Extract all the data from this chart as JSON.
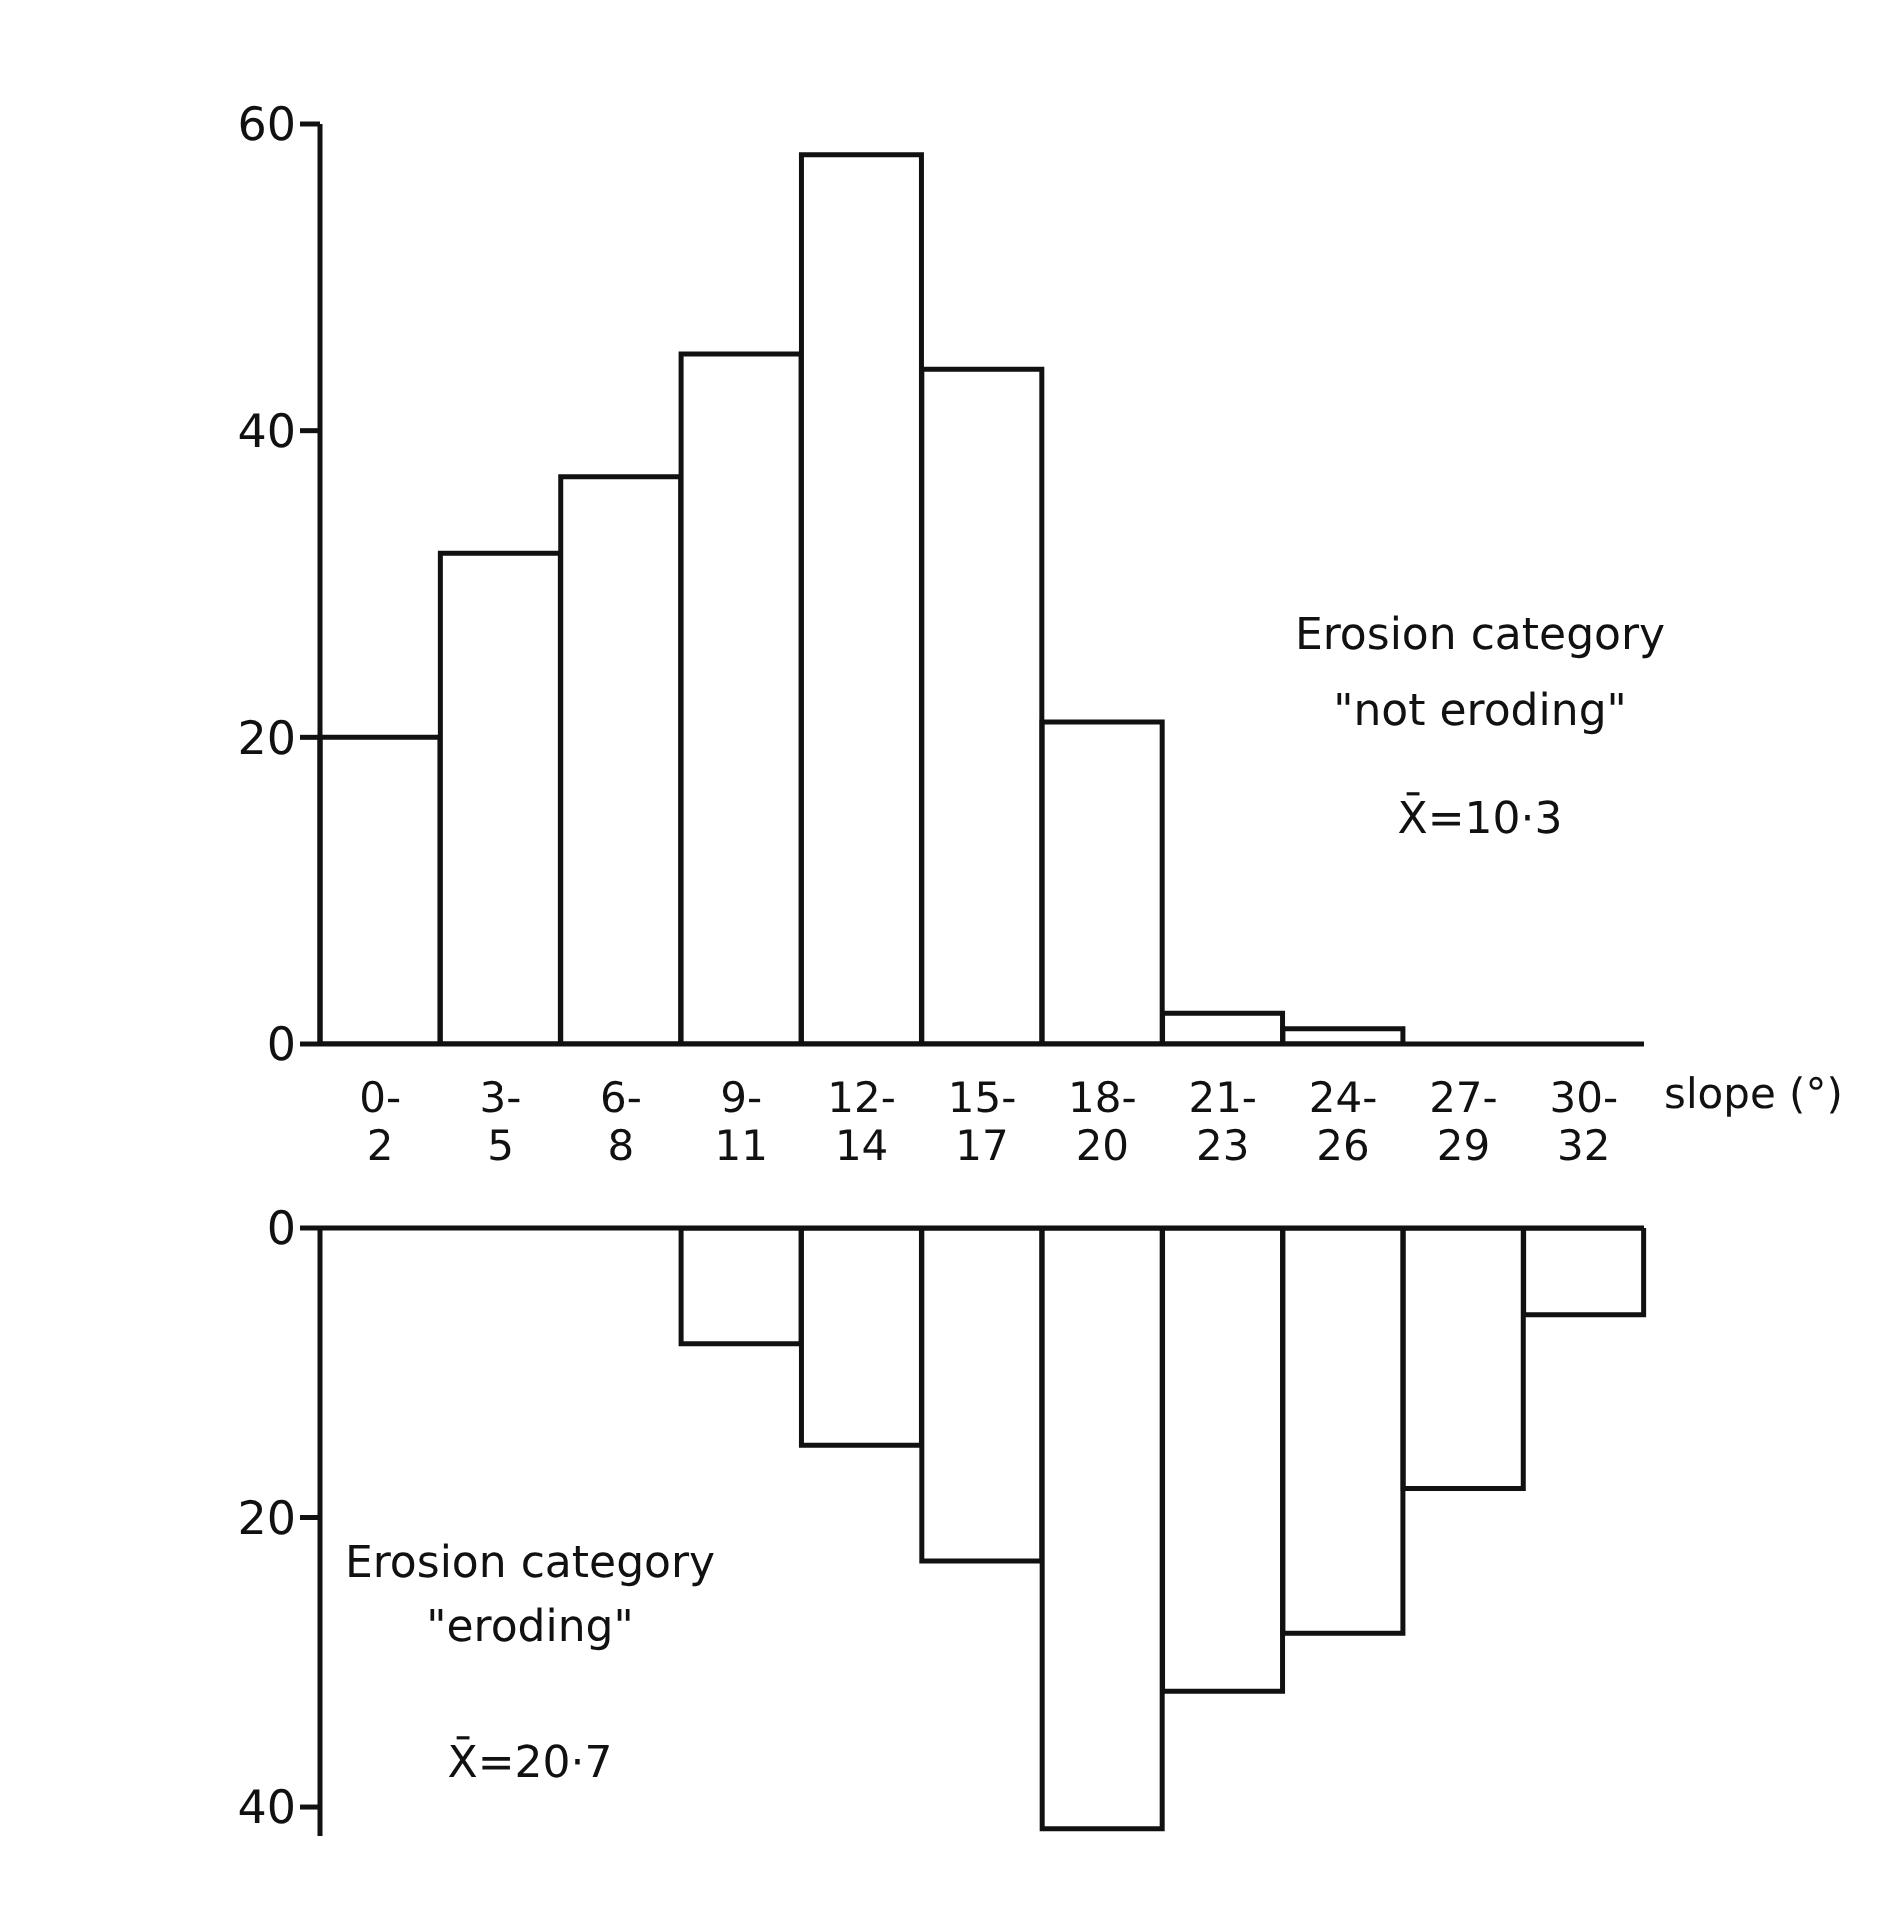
{
  "chart_data": [
    {
      "type": "bar",
      "categories": [
        "0-2",
        "3-5",
        "6-8",
        "9-11",
        "12-14",
        "15-17",
        "18-20",
        "21-23",
        "24-26",
        "27-29",
        "30-32"
      ],
      "xlabel": "slope (°)",
      "values": [
        20,
        32,
        37,
        45,
        58,
        44,
        21,
        2,
        1,
        0,
        0
      ],
      "color": "#ffffff",
      "ylim": [
        0,
        60
      ],
      "yticks": [
        0,
        20,
        40,
        60
      ],
      "annotations": [
        "Erosion category",
        "\"not eroding\"",
        "X̄=10·3"
      ]
    },
    {
      "type": "bar",
      "categories": [
        null,
        null,
        null,
        null,
        null,
        null,
        null,
        null,
        null,
        null,
        null
      ],
      "values": [
        0,
        0,
        0,
        8,
        15,
        23,
        41.5,
        32,
        28,
        18,
        6
      ],
      "color": "#ffffff",
      "ylim": [
        42,
        0
      ],
      "yticks": [
        0,
        20,
        40
      ],
      "tick_labels": "y",
      "annotations": [
        "Erosion category",
        "\"eroding\"",
        "X̄=20·7"
      ]
    }
  ]
}
